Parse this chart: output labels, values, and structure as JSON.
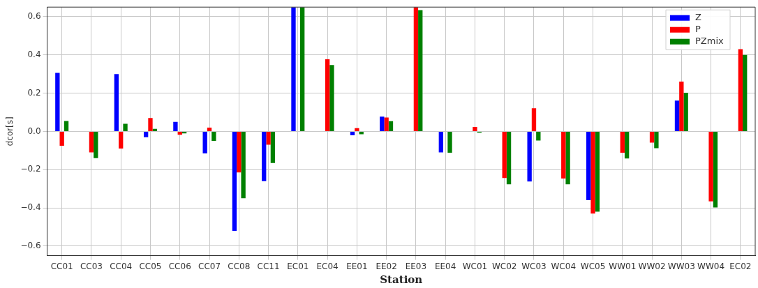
{
  "chart_data": {
    "type": "bar",
    "categories": [
      "CC01",
      "CC03",
      "CC04",
      "CC05",
      "CC06",
      "CC07",
      "CC08",
      "CC11",
      "EC01",
      "EC04",
      "EE01",
      "EE02",
      "EE03",
      "EE04",
      "WC01",
      "WC02",
      "WC03",
      "WC04",
      "WC05",
      "WW01",
      "WW02",
      "WW03",
      "WW04",
      "EC02"
    ],
    "series": [
      {
        "name": "Z",
        "color": "#0000ff",
        "values": [
          0.306,
          null,
          0.3,
          -0.03,
          0.05,
          -0.115,
          -0.52,
          -0.26,
          0.65,
          null,
          -0.02,
          0.077,
          null,
          -0.11,
          null,
          null,
          -0.262,
          null,
          -0.36,
          null,
          null,
          0.161,
          null,
          null
        ]
      },
      {
        "name": "P",
        "color": "#ff0000",
        "values": [
          -0.075,
          -0.11,
          -0.09,
          0.07,
          -0.018,
          0.02,
          -0.215,
          -0.07,
          null,
          0.377,
          0.017,
          0.073,
          0.65,
          null,
          0.023,
          -0.244,
          0.121,
          -0.247,
          -0.43,
          -0.112,
          -0.059,
          0.26,
          -0.366,
          0.43
        ]
      },
      {
        "name": "PZmix",
        "color": "#008000",
        "values": [
          0.054,
          -0.14,
          0.04,
          0.013,
          -0.01,
          -0.05,
          -0.35,
          -0.165,
          0.65,
          0.347,
          -0.015,
          0.053,
          0.634,
          -0.112,
          -0.007,
          -0.277,
          -0.048,
          -0.277,
          -0.42,
          -0.142,
          -0.088,
          0.202,
          -0.398,
          0.4
        ]
      }
    ],
    "xlabel": "Station",
    "ylabel": "dcor[s]",
    "ylim": [
      -0.65,
      0.65
    ],
    "yticks": [
      {
        "value": -0.6,
        "label": "−0.6"
      },
      {
        "value": -0.4,
        "label": "−0.4"
      },
      {
        "value": -0.2,
        "label": "−0.2"
      },
      {
        "value": 0,
        "label": "0.0"
      },
      {
        "value": 0.2,
        "label": "0.2"
      },
      {
        "value": 0.4,
        "label": "0.4"
      },
      {
        "value": 0.6,
        "label": "0.6"
      }
    ],
    "grid": true,
    "legend": "top right"
  }
}
